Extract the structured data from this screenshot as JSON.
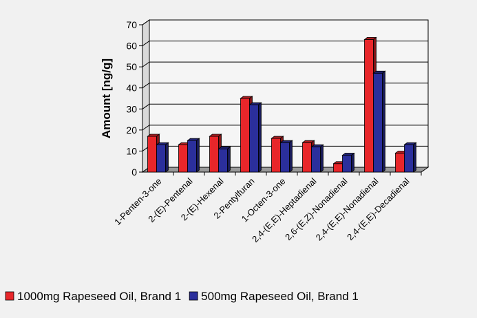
{
  "chart_data": {
    "type": "bar",
    "title": "",
    "xlabel": "",
    "ylabel": "Amount [ng/g]",
    "ylim": [
      0,
      70
    ],
    "yticks": [
      0,
      10,
      20,
      30,
      40,
      50,
      60,
      70
    ],
    "grid": true,
    "legend_position": "bottom",
    "categories": [
      "1-Penten-3-one",
      "2-(E)-Pentenal",
      "2-(E)-Hexenal",
      "2-Pentylfuran",
      "1-Octen-3-one",
      "2,4-(E,E)-Heptadienal",
      "2,6-(E,Z)-Nonadienal",
      "2,4-(E,E)-Nonadienal",
      "2,4-(E,E)-Decadienal"
    ],
    "series": [
      {
        "name": "1000mg Rapeseed Oil, Brand 1",
        "color": "#e8262a",
        "values": [
          17,
          13,
          17,
          35,
          16,
          14,
          4,
          63,
          9
        ]
      },
      {
        "name": "500mg Rapeseed Oil, Brand 1",
        "color": "#2b2f9c",
        "values": [
          13,
          15,
          11,
          32,
          14,
          12,
          8,
          47,
          13
        ]
      }
    ]
  }
}
